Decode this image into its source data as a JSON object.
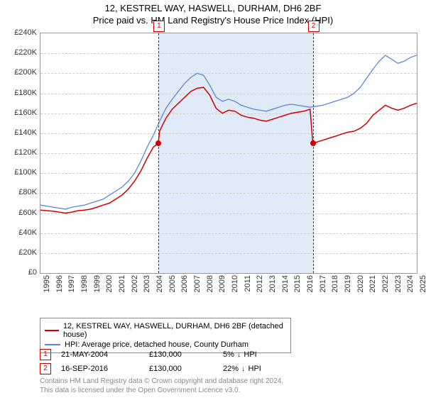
{
  "title": "12, KESTREL WAY, HASWELL, DURHAM, DH6 2BF",
  "subtitle": "Price paid vs. HM Land Registry's House Price Index (HPI)",
  "chart": {
    "type": "line",
    "background_color": "#ffffff",
    "grid_color": "#cccccc",
    "border_color": "#999999",
    "shade_color": "#e1eaf7",
    "x_start_year": 1995,
    "x_end_year": 2025,
    "x_tick_labels": [
      "1995",
      "1996",
      "1997",
      "1998",
      "1999",
      "2000",
      "2001",
      "2002",
      "2003",
      "2004",
      "2005",
      "2006",
      "2007",
      "2008",
      "2009",
      "2010",
      "2011",
      "2012",
      "2013",
      "2014",
      "2015",
      "2016",
      "2017",
      "2018",
      "2019",
      "2020",
      "2021",
      "2022",
      "2023",
      "2024",
      "2025"
    ],
    "y_min": 0,
    "y_max": 240000,
    "y_tick_step": 20000,
    "y_tick_labels": [
      "£0",
      "£20K",
      "£40K",
      "£60K",
      "£80K",
      "£100K",
      "£120K",
      "£140K",
      "£160K",
      "£180K",
      "£200K",
      "£220K",
      "£240K"
    ],
    "y_tick_fontsize": 11,
    "x_tick_fontsize": 11,
    "title_fontsize": 13,
    "series": [
      {
        "name": "property",
        "label": "12, KESTREL WAY, HASWELL, DURHAM, DH6 2BF (detached house)",
        "color": "#d00000",
        "line_width": 1.5,
        "points": [
          [
            1995.0,
            63000
          ],
          [
            1996.0,
            62000
          ],
          [
            1996.5,
            61000
          ],
          [
            1997.0,
            60000
          ],
          [
            1997.5,
            61000
          ],
          [
            1998.0,
            62500
          ],
          [
            1998.5,
            63000
          ],
          [
            1999.0,
            64000
          ],
          [
            1999.5,
            66000
          ],
          [
            2000.0,
            68000
          ],
          [
            2000.5,
            70000
          ],
          [
            2001.0,
            74000
          ],
          [
            2001.5,
            78000
          ],
          [
            2002.0,
            84000
          ],
          [
            2002.5,
            92000
          ],
          [
            2003.0,
            102000
          ],
          [
            2003.5,
            115000
          ],
          [
            2004.0,
            126000
          ],
          [
            2004.39,
            130000
          ],
          [
            2004.5,
            142000
          ],
          [
            2005.0,
            155000
          ],
          [
            2005.5,
            164000
          ],
          [
            2006.0,
            170000
          ],
          [
            2006.5,
            176000
          ],
          [
            2007.0,
            182000
          ],
          [
            2007.5,
            185000
          ],
          [
            2008.0,
            186000
          ],
          [
            2008.5,
            178000
          ],
          [
            2009.0,
            165000
          ],
          [
            2009.5,
            160000
          ],
          [
            2010.0,
            163000
          ],
          [
            2010.5,
            162000
          ],
          [
            2011.0,
            158000
          ],
          [
            2011.5,
            156000
          ],
          [
            2012.0,
            155000
          ],
          [
            2012.5,
            153000
          ],
          [
            2013.0,
            152000
          ],
          [
            2013.5,
            154000
          ],
          [
            2014.0,
            156000
          ],
          [
            2014.5,
            158000
          ],
          [
            2015.0,
            160000
          ],
          [
            2015.5,
            161000
          ],
          [
            2016.0,
            162000
          ],
          [
            2016.5,
            164000
          ],
          [
            2016.71,
            130000
          ],
          [
            2016.72,
            130000
          ],
          [
            2017.0,
            131000
          ],
          [
            2017.5,
            133000
          ],
          [
            2018.0,
            135000
          ],
          [
            2018.5,
            137000
          ],
          [
            2019.0,
            139000
          ],
          [
            2019.5,
            141000
          ],
          [
            2020.0,
            142000
          ],
          [
            2020.5,
            145000
          ],
          [
            2021.0,
            150000
          ],
          [
            2021.5,
            158000
          ],
          [
            2022.0,
            163000
          ],
          [
            2022.5,
            168000
          ],
          [
            2023.0,
            165000
          ],
          [
            2023.5,
            163000
          ],
          [
            2024.0,
            165000
          ],
          [
            2024.5,
            168000
          ],
          [
            2025.0,
            170000
          ]
        ]
      },
      {
        "name": "hpi",
        "label": "HPI: Average price, detached house, County Durham",
        "color": "#5b87d6",
        "line_width": 1.3,
        "points": [
          [
            1995.0,
            68000
          ],
          [
            1996.0,
            66000
          ],
          [
            1996.5,
            65000
          ],
          [
            1997.0,
            64000
          ],
          [
            1997.5,
            66000
          ],
          [
            1998.0,
            67000
          ],
          [
            1998.5,
            68000
          ],
          [
            1999.0,
            70000
          ],
          [
            1999.5,
            72000
          ],
          [
            2000.0,
            74000
          ],
          [
            2000.5,
            78000
          ],
          [
            2001.0,
            82000
          ],
          [
            2001.5,
            86000
          ],
          [
            2002.0,
            92000
          ],
          [
            2002.5,
            100000
          ],
          [
            2003.0,
            112000
          ],
          [
            2003.5,
            126000
          ],
          [
            2004.0,
            138000
          ],
          [
            2004.5,
            152000
          ],
          [
            2005.0,
            165000
          ],
          [
            2005.5,
            174000
          ],
          [
            2006.0,
            182000
          ],
          [
            2006.5,
            190000
          ],
          [
            2007.0,
            196000
          ],
          [
            2007.5,
            200000
          ],
          [
            2008.0,
            198000
          ],
          [
            2008.5,
            188000
          ],
          [
            2009.0,
            176000
          ],
          [
            2009.5,
            172000
          ],
          [
            2010.0,
            174000
          ],
          [
            2010.5,
            172000
          ],
          [
            2011.0,
            168000
          ],
          [
            2011.5,
            166000
          ],
          [
            2012.0,
            164000
          ],
          [
            2012.5,
            163000
          ],
          [
            2013.0,
            162000
          ],
          [
            2013.5,
            164000
          ],
          [
            2014.0,
            166000
          ],
          [
            2014.5,
            168000
          ],
          [
            2015.0,
            169000
          ],
          [
            2015.5,
            168000
          ],
          [
            2016.0,
            167000
          ],
          [
            2016.5,
            166000
          ],
          [
            2017.0,
            167000
          ],
          [
            2017.5,
            168000
          ],
          [
            2018.0,
            170000
          ],
          [
            2018.5,
            172000
          ],
          [
            2019.0,
            174000
          ],
          [
            2019.5,
            176000
          ],
          [
            2020.0,
            180000
          ],
          [
            2020.5,
            186000
          ],
          [
            2021.0,
            195000
          ],
          [
            2021.5,
            204000
          ],
          [
            2022.0,
            212000
          ],
          [
            2022.5,
            218000
          ],
          [
            2023.0,
            214000
          ],
          [
            2023.5,
            210000
          ],
          [
            2024.0,
            212000
          ],
          [
            2024.5,
            216000
          ],
          [
            2025.0,
            218000
          ]
        ]
      }
    ],
    "transactions": [
      {
        "idx": "1",
        "year": 2004.39,
        "price": 130000,
        "date": "21-MAY-2004",
        "price_label": "£130,000",
        "diff": "5%",
        "diff_dir": "down",
        "diff_label": "HPI"
      },
      {
        "idx": "2",
        "year": 2016.71,
        "price": 130000,
        "date": "16-SEP-2016",
        "price_label": "£130,000",
        "diff": "22%",
        "diff_dir": "down",
        "diff_label": "HPI"
      }
    ]
  },
  "legend": {
    "items": [
      {
        "color": "#d00000",
        "label": "12, KESTREL WAY, HASWELL, DURHAM, DH6 2BF (detached house)"
      },
      {
        "color": "#5b87d6",
        "label": "HPI: Average price, detached house, County Durham"
      }
    ]
  },
  "footer": {
    "line1": "Contains HM Land Registry data © Crown copyright and database right 2024.",
    "line2": "This data is licensed under the Open Government Licence v3.0."
  }
}
